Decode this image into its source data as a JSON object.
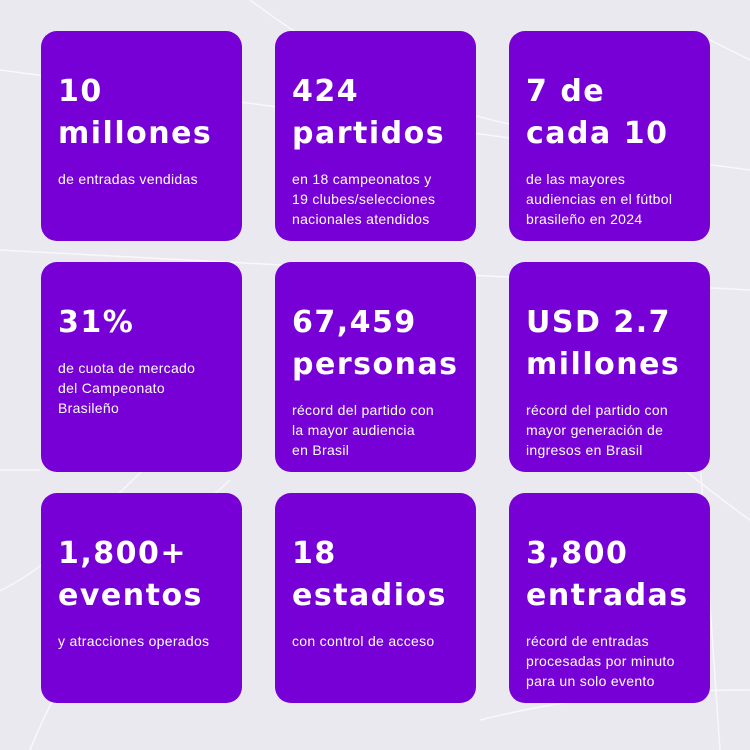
{
  "colors": {
    "background": "#e9e9ef",
    "card": "#7600d6",
    "text": "#ffffff"
  },
  "stats": [
    {
      "headline": "10\nmillones",
      "description": "de entradas vendidas"
    },
    {
      "headline": "424\npartidos",
      "description": "en 18 campeonatos y\n19 clubes/selecciones\nnacionales atendidos"
    },
    {
      "headline": "7 de\ncada 10",
      "description": "de las mayores\naudiencias en el fútbol\nbrasileño en 2024"
    },
    {
      "headline": "31%",
      "description": "de cuota de mercado\ndel Campeonato\nBrasileño"
    },
    {
      "headline": "67,459\npersonas",
      "description": "récord del partido con\nla mayor audiencia\nen Brasil"
    },
    {
      "headline": "USD 2.7\nmillones",
      "description": "récord del partido con\nmayor generación de\ningresos en Brasil"
    },
    {
      "headline": "1,800+\neventos",
      "description": "y atracciones operados"
    },
    {
      "headline": "18\nestadios",
      "description": "con control de acceso"
    },
    {
      "headline": "3,800\nentradas",
      "description": "récord de entradas\nprocesadas por minuto\npara un solo evento"
    }
  ]
}
